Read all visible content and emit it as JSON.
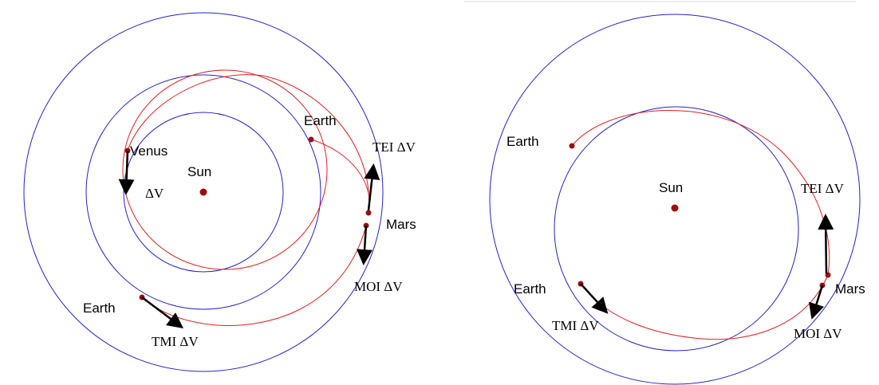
{
  "left": {
    "labels": [
      "Venus",
      "Sun",
      "ΔV",
      "Earth",
      "TEI ΔV",
      "Mars",
      "MOI ΔV",
      "Earth",
      "TMI ΔV"
    ]
  },
  "right": {
    "labels": [
      "Earth",
      "Sun",
      "TEI ΔV",
      "Mars",
      "Earth",
      "TMI ΔV",
      "MOI ΔV"
    ]
  }
}
